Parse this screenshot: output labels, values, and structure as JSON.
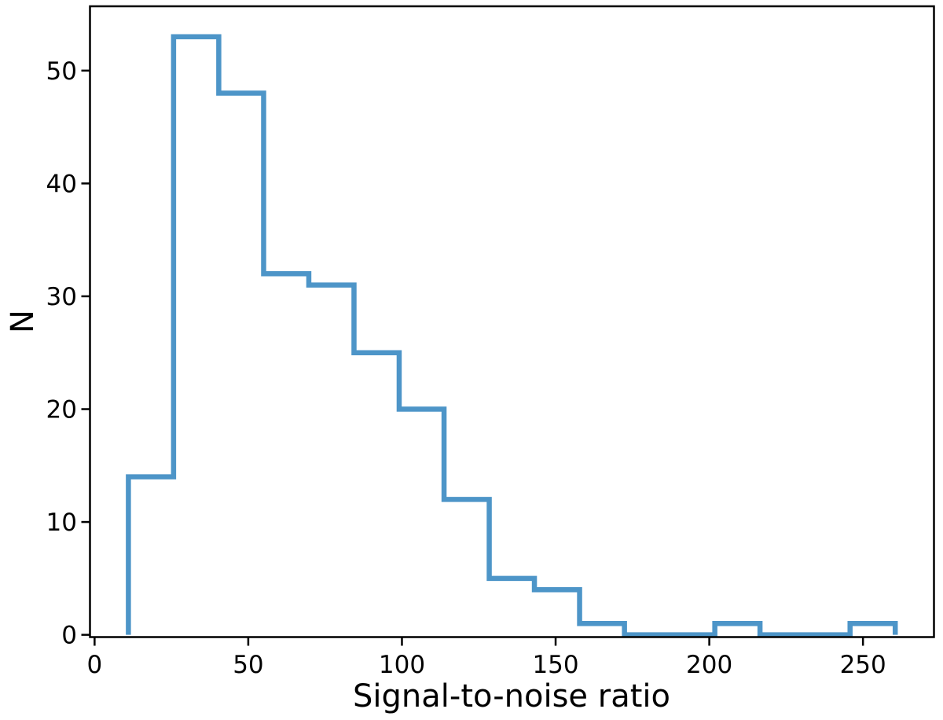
{
  "figure": {
    "background_color": "#ffffff"
  },
  "chart_data": {
    "type": "histogram",
    "histtype": "step",
    "title": "",
    "xlabel": "Signal-to-noise ratio",
    "ylabel": "N",
    "bin_edges": [
      11.0,
      25.7,
      40.4,
      55.0,
      69.7,
      84.4,
      99.1,
      113.7,
      128.4,
      143.1,
      157.8,
      172.4,
      187.1,
      201.8,
      216.5,
      231.1,
      245.8,
      260.5
    ],
    "counts": [
      14,
      53,
      48,
      32,
      31,
      25,
      20,
      12,
      5,
      4,
      1,
      0,
      0,
      1,
      0,
      0,
      1
    ],
    "x_ticks": [
      0,
      50,
      100,
      150,
      200,
      250
    ],
    "y_ticks": [
      0,
      10,
      20,
      30,
      40,
      50
    ],
    "xlim": [
      -1.5,
      273.1
    ],
    "ylim": [
      -0.2,
      55.7
    ],
    "grid": false,
    "legend": "none",
    "line_color": "#4D95C8",
    "axis_color": "#000000",
    "tick_label_color": "#000000"
  }
}
